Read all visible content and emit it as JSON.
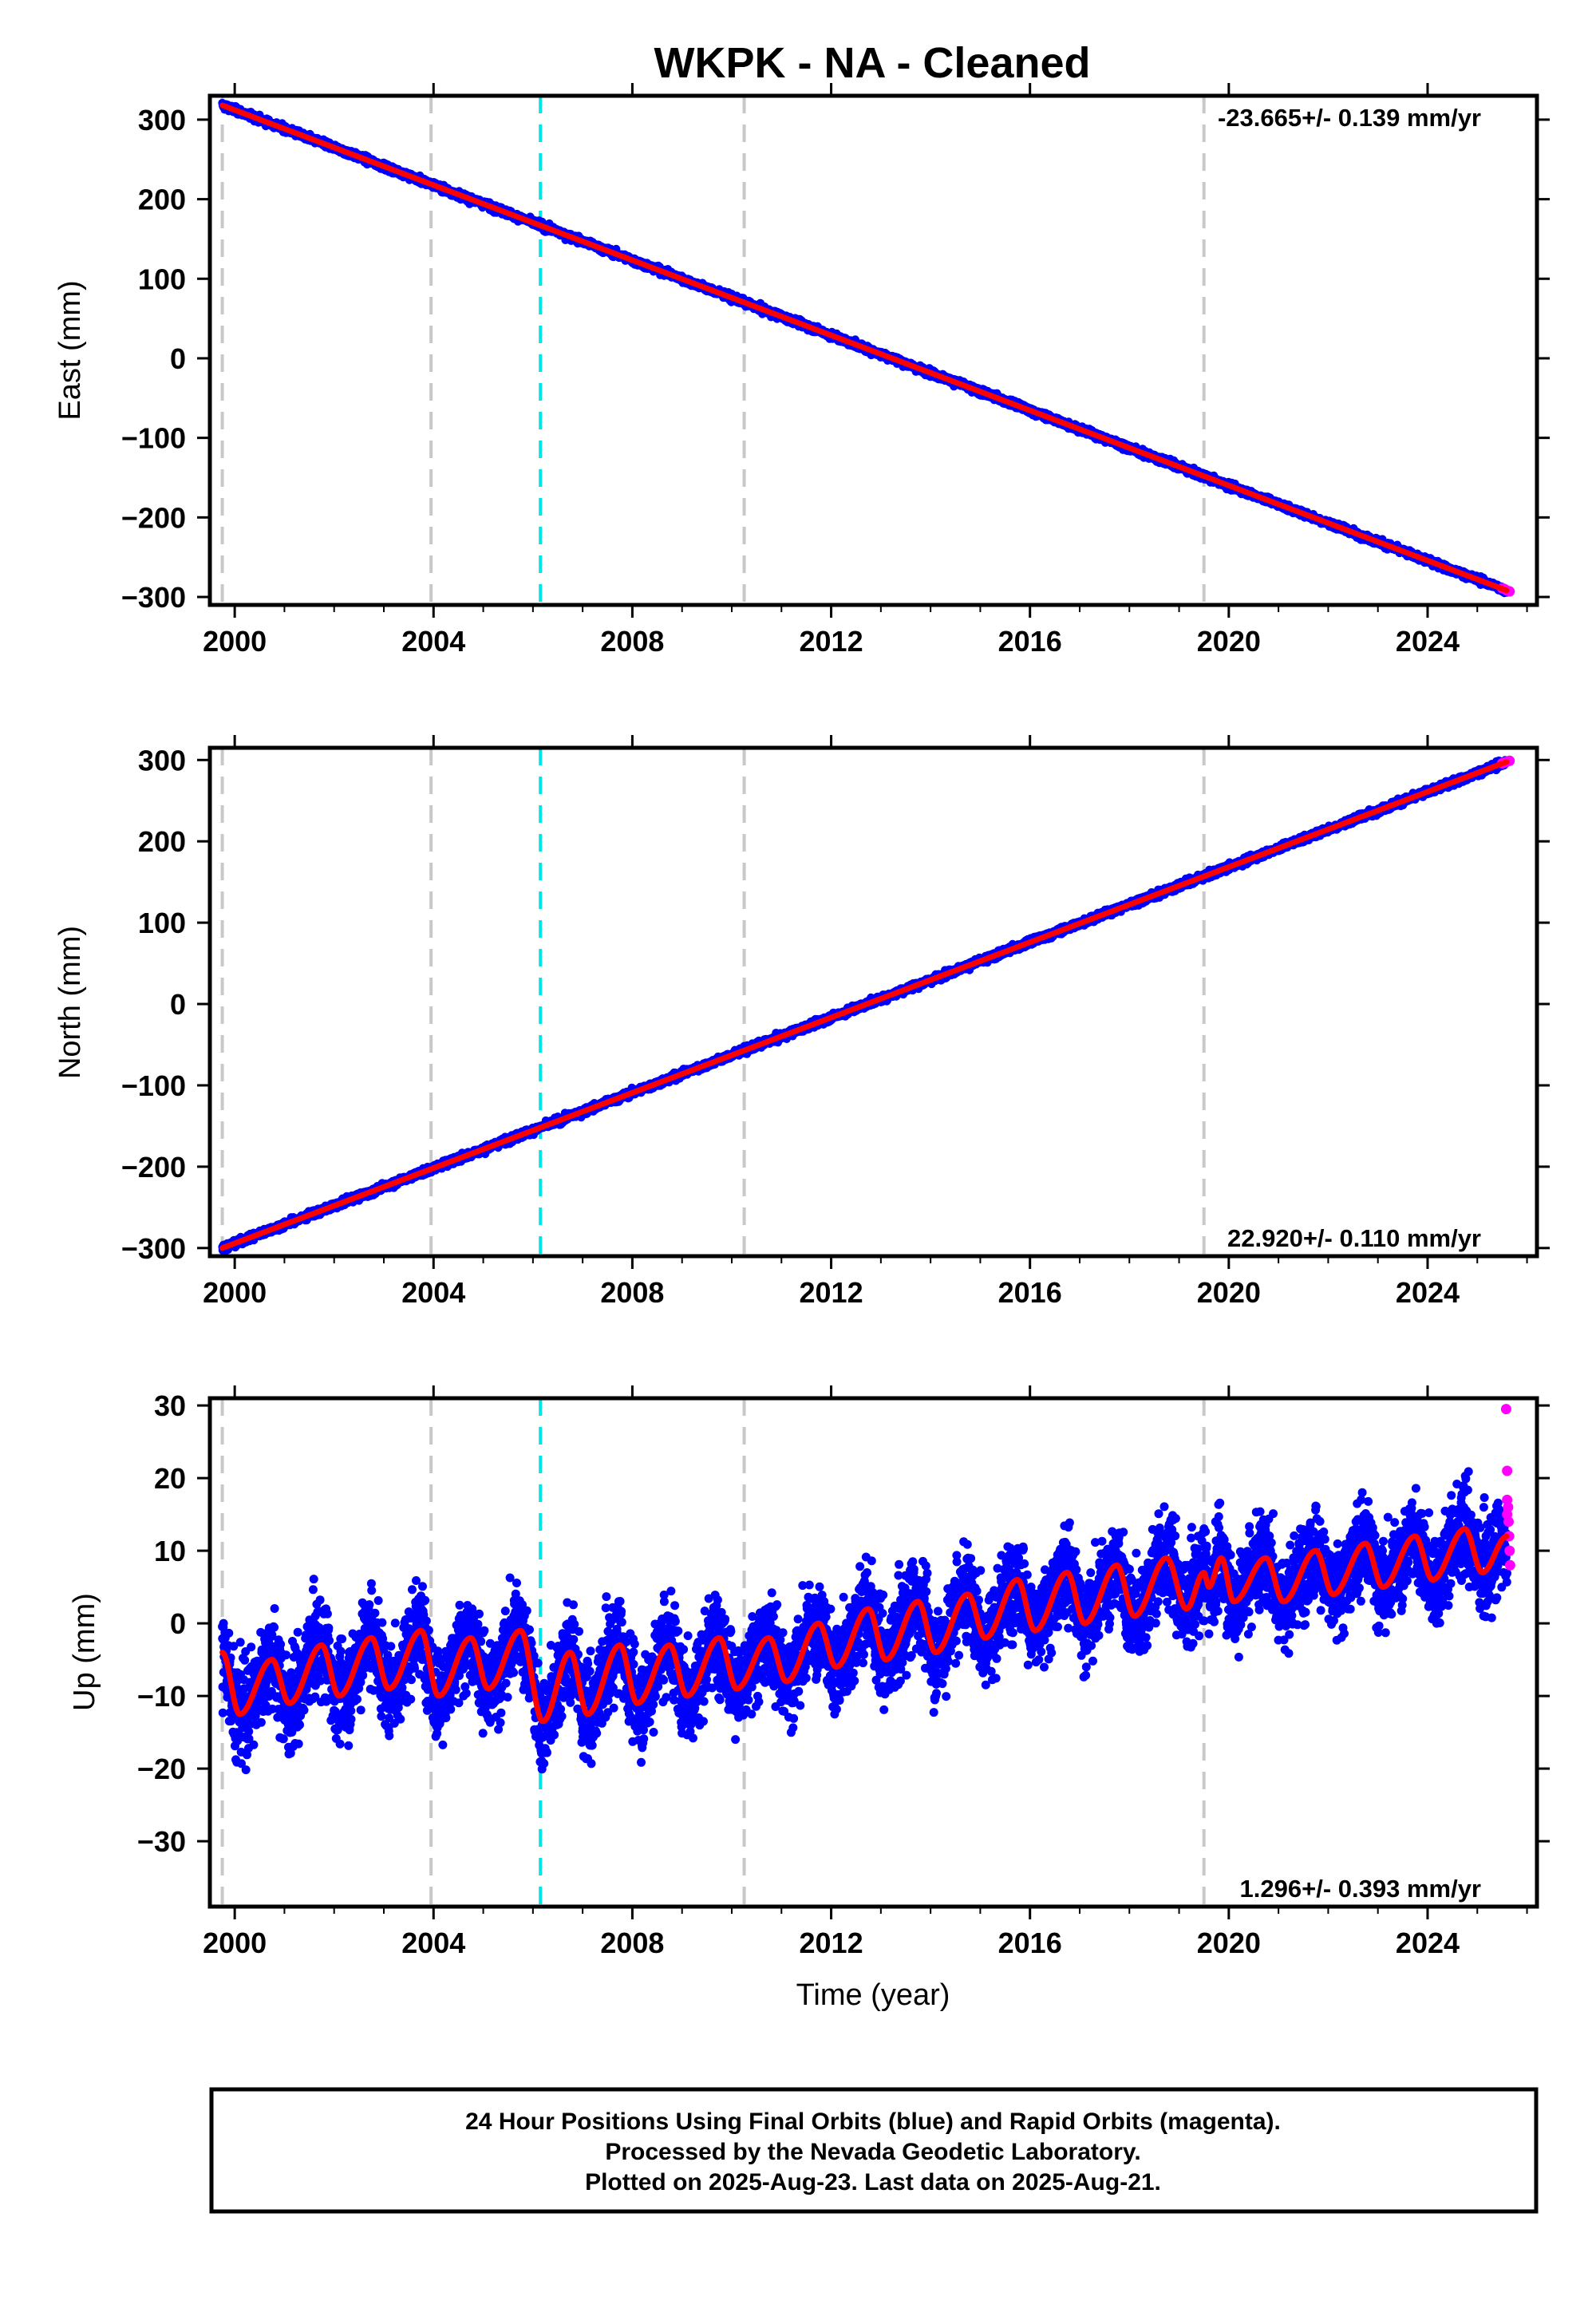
{
  "title": "WKPK  - NA - Cleaned",
  "xlabel": "Time (year)",
  "footer": {
    "line1": "24 Hour Positions Using Final Orbits (blue) and Rapid Orbits (magenta).",
    "line2": "Processed by the Nevada Geodetic Laboratory.",
    "line3": "Plotted on 2025-Aug-23. Last data on 2025-Aug-21."
  },
  "colors": {
    "final": "#0000ff",
    "rapid": "#ff00ff",
    "model": "#ff0000",
    "event_gray": "#c8c8c8",
    "event_cyan": "#00e6e6"
  },
  "chart_data": [
    {
      "type": "scatter",
      "name": "east",
      "ylabel": "East (mm)",
      "rate": "-23.665+/- 0.139 mm/yr",
      "rate_position": "top-right",
      "xlim": [
        1999.5,
        2026.2
      ],
      "ylim": [
        -310,
        330
      ],
      "xticks": [
        2000,
        2004,
        2008,
        2012,
        2016,
        2020,
        2024
      ],
      "yticks": [
        -300,
        -200,
        -100,
        0,
        100,
        200,
        300
      ],
      "vlines_gray": [
        1999.75,
        2003.95,
        2010.25,
        2019.5
      ],
      "vlines_cyan": [
        2006.15
      ],
      "series": [
        {
          "name": "final",
          "start": [
            1999.75,
            318
          ],
          "end": [
            2025.6,
            -292
          ],
          "scatter_mm": 3
        },
        {
          "name": "rapid",
          "x": [
            2025.5,
            2025.55,
            2025.6,
            2025.65
          ],
          "y": [
            -289,
            -290,
            -292,
            -293
          ]
        },
        {
          "name": "model",
          "start": [
            1999.75,
            318
          ],
          "end": [
            2025.6,
            -292
          ],
          "annual_amp": 0
        }
      ]
    },
    {
      "type": "scatter",
      "name": "north",
      "ylabel": "North (mm)",
      "rate": "22.920+/- 0.110 mm/yr",
      "rate_position": "bottom-right",
      "xlim": [
        1999.5,
        2026.2
      ],
      "ylim": [
        -310,
        315
      ],
      "xticks": [
        2000,
        2004,
        2008,
        2012,
        2016,
        2020,
        2024
      ],
      "yticks": [
        -300,
        -200,
        -100,
        0,
        100,
        200,
        300
      ],
      "vlines_gray": [
        1999.75,
        2003.95,
        2010.25,
        2019.5
      ],
      "vlines_cyan": [
        2006.15
      ],
      "series": [
        {
          "name": "final",
          "start": [
            1999.75,
            -300
          ],
          "end": [
            2025.6,
            298
          ],
          "scatter_mm": 3
        },
        {
          "name": "rapid",
          "x": [
            2025.5,
            2025.55,
            2025.6,
            2025.65
          ],
          "y": [
            296,
            297,
            298,
            299
          ]
        },
        {
          "name": "model",
          "start": [
            1999.75,
            -300
          ],
          "end": [
            2025.6,
            298
          ],
          "annual_amp": 0
        }
      ]
    },
    {
      "type": "scatter",
      "name": "up",
      "ylabel": "Up (mm)",
      "rate": "1.296+/- 0.393 mm/yr",
      "rate_position": "bottom-right",
      "xlim": [
        1999.5,
        2026.2
      ],
      "ylim": [
        -39,
        31
      ],
      "xticks": [
        2000,
        2004,
        2008,
        2012,
        2016,
        2020,
        2024
      ],
      "yticks": [
        -30,
        -20,
        -10,
        0,
        10,
        20,
        30
      ],
      "vlines_gray": [
        1999.75,
        2003.95,
        2010.25,
        2019.5
      ],
      "vlines_cyan": [
        2006.15
      ],
      "series": [
        {
          "name": "final",
          "start": [
            1999.75,
            -8
          ],
          "end": [
            2025.6,
            10
          ],
          "scatter_mm": 4.5
        },
        {
          "name": "rapid",
          "x": [
            2025.58,
            2025.6,
            2025.6,
            2025.62,
            2025.63,
            2025.64,
            2025.65,
            2025.66,
            2025.6
          ],
          "y": [
            29.5,
            21,
            17,
            16,
            14,
            12,
            10,
            8,
            15
          ]
        },
        {
          "name": "model",
          "knots": [
            [
              1999.75,
              -4
            ],
            [
              2000.1,
              -12.5
            ],
            [
              2000.75,
              -5
            ],
            [
              2001.1,
              -11
            ],
            [
              2001.75,
              -3
            ],
            [
              2002.1,
              -10
            ],
            [
              2002.75,
              -2
            ],
            [
              2003.1,
              -9
            ],
            [
              2003.75,
              -1
            ],
            [
              2004.1,
              -10
            ],
            [
              2004.75,
              -2
            ],
            [
              2005.1,
              -9
            ],
            [
              2005.75,
              -1
            ],
            [
              2006.2,
              -13.5
            ],
            [
              2006.75,
              -4
            ],
            [
              2007.1,
              -12.5
            ],
            [
              2007.75,
              -3
            ],
            [
              2008.1,
              -11
            ],
            [
              2008.75,
              -3
            ],
            [
              2009.1,
              -10
            ],
            [
              2009.75,
              -2
            ],
            [
              2010.1,
              -9
            ],
            [
              2010.75,
              -2
            ],
            [
              2011.1,
              -8
            ],
            [
              2011.75,
              0
            ],
            [
              2012.1,
              -6
            ],
            [
              2012.75,
              2
            ],
            [
              2013.1,
              -5
            ],
            [
              2013.75,
              3
            ],
            [
              2014.1,
              -4
            ],
            [
              2014.75,
              4
            ],
            [
              2015.1,
              -2
            ],
            [
              2015.75,
              6
            ],
            [
              2016.1,
              -1
            ],
            [
              2016.75,
              7
            ],
            [
              2017.1,
              0
            ],
            [
              2017.75,
              8
            ],
            [
              2018.1,
              1
            ],
            [
              2018.75,
              9
            ],
            [
              2019.15,
              2
            ],
            [
              2019.5,
              7
            ],
            [
              2019.6,
              5
            ],
            [
              2019.85,
              9
            ],
            [
              2020.1,
              3
            ],
            [
              2020.75,
              9
            ],
            [
              2021.1,
              3
            ],
            [
              2021.75,
              10
            ],
            [
              2022.1,
              4
            ],
            [
              2022.75,
              11
            ],
            [
              2023.1,
              5
            ],
            [
              2023.75,
              12
            ],
            [
              2024.1,
              6
            ],
            [
              2024.75,
              13
            ],
            [
              2025.1,
              7
            ],
            [
              2025.6,
              12
            ]
          ]
        }
      ]
    }
  ]
}
